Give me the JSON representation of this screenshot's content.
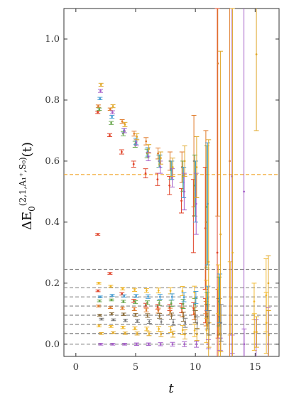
{
  "chart_data": {
    "type": "scatter",
    "title": "",
    "xlabel": "t",
    "ylabel": {
      "prefix": "ΔE",
      "subscript": "0",
      "superscript": "(2,1,A₁⁺,S₀)",
      "suffix": "(t)"
    },
    "xlim": [
      -1,
      17
    ],
    "ylim": [
      -0.04,
      1.1
    ],
    "xticks": [
      0,
      5,
      10,
      15
    ],
    "yticks": [
      0.0,
      0.2,
      0.4,
      0.6,
      0.8,
      1.0
    ],
    "ytick_labels": [
      "0.0",
      "0.2",
      "0.4",
      "0.6",
      "0.8",
      "1.0"
    ],
    "reference_lines": [
      {
        "y": 0.556,
        "color": "#f2a62b"
      },
      {
        "y": 0.245,
        "color": "#888888"
      },
      {
        "y": 0.185,
        "color": "#888888"
      },
      {
        "y": 0.155,
        "color": "#888888"
      },
      {
        "y": 0.125,
        "color": "#888888"
      },
      {
        "y": 0.095,
        "color": "#888888"
      },
      {
        "y": 0.065,
        "color": "#888888"
      },
      {
        "y": 0.035,
        "color": "#888888"
      },
      {
        "y": 0.0,
        "color": "#888888"
      }
    ],
    "series": [
      {
        "color": "#e0442a",
        "points": [
          [
            2,
            0.36,
            0.003
          ],
          [
            2,
            0.76,
            0.004
          ],
          [
            3,
            0.685,
            0.005
          ],
          [
            4,
            0.63,
            0.007
          ],
          [
            5,
            0.59,
            0.01
          ],
          [
            6,
            0.56,
            0.015
          ],
          [
            7,
            0.54,
            0.02
          ],
          [
            8,
            0.52,
            0.03
          ],
          [
            9,
            0.47,
            0.04
          ],
          [
            10,
            0.42,
            0.12
          ],
          [
            11,
            0.38,
            0.2
          ],
          [
            12,
            0.3,
            0.8
          ]
        ]
      },
      {
        "color": "#e0442a",
        "points": [
          [
            2,
            0.175,
            0.003
          ],
          [
            3,
            0.232,
            0.003
          ],
          [
            4,
            0.165,
            0.004
          ],
          [
            5,
            0.142,
            0.005
          ],
          [
            6,
            0.128,
            0.006
          ],
          [
            7,
            0.122,
            0.008
          ],
          [
            8,
            0.12,
            0.01
          ],
          [
            9,
            0.118,
            0.015
          ],
          [
            10,
            0.116,
            0.02
          ],
          [
            11,
            0.11,
            0.04
          ]
        ]
      },
      {
        "color": "#e07b2a",
        "points": [
          [
            2,
            0.78,
            0.004
          ],
          [
            3,
            0.77,
            0.004
          ],
          [
            4,
            0.73,
            0.006
          ],
          [
            5,
            0.69,
            0.008
          ],
          [
            6,
            0.665,
            0.012
          ],
          [
            7,
            0.625,
            0.018
          ],
          [
            8,
            0.6,
            0.03
          ],
          [
            9,
            0.58,
            0.05
          ],
          [
            10,
            0.6,
            0.15
          ],
          [
            11,
            0.4,
            0.3
          ],
          [
            12,
            0.92,
            0.5
          ],
          [
            13,
            0.6,
            0.8
          ]
        ]
      },
      {
        "color": "#e07b2a",
        "points": [
          [
            2,
            0.125,
            0.003
          ],
          [
            3,
            0.12,
            0.003
          ],
          [
            4,
            0.118,
            0.004
          ],
          [
            5,
            0.115,
            0.005
          ],
          [
            6,
            0.112,
            0.006
          ],
          [
            7,
            0.11,
            0.008
          ],
          [
            8,
            0.108,
            0.01
          ],
          [
            9,
            0.105,
            0.015
          ],
          [
            10,
            0.1,
            0.02
          ],
          [
            11,
            0.1,
            0.04
          ],
          [
            12,
            0.1,
            0.08
          ]
        ]
      },
      {
        "color": "#f2b82b",
        "points": [
          [
            2,
            0.2,
            0.003
          ],
          [
            3,
            0.19,
            0.003
          ],
          [
            4,
            0.182,
            0.004
          ],
          [
            5,
            0.178,
            0.005
          ],
          [
            6,
            0.176,
            0.006
          ],
          [
            7,
            0.176,
            0.008
          ],
          [
            8,
            0.175,
            0.01
          ],
          [
            9,
            0.174,
            0.015
          ],
          [
            10,
            0.17,
            0.02
          ],
          [
            11,
            0.17,
            0.04
          ],
          [
            12,
            0.18,
            0.08
          ],
          [
            13,
            0.15,
            0.12
          ],
          [
            15,
            0.14,
            0.06
          ],
          [
            16,
            0.16,
            0.12
          ]
        ]
      },
      {
        "color": "#f2b82b",
        "points": [
          [
            2,
            0.06,
            0.003
          ],
          [
            3,
            0.058,
            0.003
          ],
          [
            4,
            0.055,
            0.004
          ],
          [
            5,
            0.052,
            0.005
          ],
          [
            6,
            0.05,
            0.006
          ],
          [
            7,
            0.05,
            0.008
          ],
          [
            8,
            0.048,
            0.01
          ],
          [
            9,
            0.046,
            0.015
          ],
          [
            10,
            0.045,
            0.02
          ],
          [
            11,
            0.045,
            0.04
          ],
          [
            12,
            0.05,
            0.1
          ],
          [
            15,
            0.04,
            0.06
          ],
          [
            16,
            0.07,
            0.1
          ]
        ]
      },
      {
        "color": "#6aa84f",
        "points": [
          [
            2,
            0.77,
            0.004
          ],
          [
            3,
            0.725,
            0.005
          ],
          [
            4,
            0.69,
            0.007
          ],
          [
            5,
            0.655,
            0.01
          ],
          [
            6,
            0.625,
            0.014
          ],
          [
            7,
            0.6,
            0.02
          ],
          [
            8,
            0.57,
            0.03
          ],
          [
            9,
            0.55,
            0.05
          ],
          [
            10,
            0.52,
            0.1
          ],
          [
            11,
            0.45,
            0.2
          ]
        ]
      },
      {
        "color": "#6aa84f",
        "points": [
          [
            2,
            0.142,
            0.003
          ],
          [
            3,
            0.145,
            0.003
          ],
          [
            4,
            0.14,
            0.004
          ],
          [
            5,
            0.138,
            0.005
          ],
          [
            6,
            0.136,
            0.006
          ],
          [
            7,
            0.135,
            0.008
          ],
          [
            8,
            0.134,
            0.01
          ],
          [
            9,
            0.132,
            0.015
          ],
          [
            10,
            0.13,
            0.02
          ],
          [
            11,
            0.13,
            0.04
          ],
          [
            12,
            0.14,
            0.08
          ]
        ]
      },
      {
        "color": "#8b6d3a",
        "points": [
          [
            2,
            0.095,
            0.003
          ],
          [
            3,
            0.1,
            0.003
          ],
          [
            4,
            0.098,
            0.004
          ],
          [
            5,
            0.096,
            0.005
          ],
          [
            6,
            0.094,
            0.006
          ],
          [
            7,
            0.093,
            0.008
          ],
          [
            8,
            0.092,
            0.01
          ],
          [
            9,
            0.09,
            0.015
          ],
          [
            10,
            0.09,
            0.02
          ],
          [
            11,
            0.09,
            0.04
          ],
          [
            12,
            0.09,
            0.06
          ]
        ]
      },
      {
        "color": "#4a9fd4",
        "points": [
          [
            2,
            0.805,
            0.004
          ],
          [
            3,
            0.745,
            0.005
          ],
          [
            4,
            0.7,
            0.007
          ],
          [
            5,
            0.665,
            0.01
          ],
          [
            6,
            0.63,
            0.014
          ],
          [
            7,
            0.6,
            0.02
          ],
          [
            8,
            0.57,
            0.03
          ],
          [
            9,
            0.53,
            0.05
          ],
          [
            10,
            0.5,
            0.1
          ],
          [
            11,
            0.46,
            0.2
          ]
        ]
      },
      {
        "color": "#4a9fd4",
        "points": [
          [
            2,
            0.155,
            0.003
          ],
          [
            3,
            0.16,
            0.003
          ],
          [
            4,
            0.158,
            0.004
          ],
          [
            5,
            0.158,
            0.005
          ],
          [
            6,
            0.156,
            0.006
          ],
          [
            7,
            0.155,
            0.008
          ],
          [
            8,
            0.155,
            0.01
          ],
          [
            9,
            0.154,
            0.015
          ],
          [
            10,
            0.153,
            0.02
          ],
          [
            11,
            0.15,
            0.04
          ],
          [
            12,
            0.15,
            0.08
          ]
        ]
      },
      {
        "color": "#a55fc8",
        "points": [
          [
            2,
            0.83,
            0.005
          ],
          [
            3,
            0.76,
            0.005
          ],
          [
            4,
            0.7,
            0.007
          ],
          [
            5,
            0.66,
            0.01
          ],
          [
            6,
            0.615,
            0.014
          ],
          [
            7,
            0.58,
            0.02
          ],
          [
            8,
            0.545,
            0.03
          ],
          [
            9,
            0.5,
            0.06
          ],
          [
            10,
            0.46,
            0.1
          ],
          [
            13,
            0.55,
            0.9
          ],
          [
            14,
            0.5,
            0.9
          ]
        ]
      },
      {
        "color": "#a55fc8",
        "points": [
          [
            2,
            0.0,
            0.003
          ],
          [
            3,
            0.0,
            0.003
          ],
          [
            4,
            0.0,
            0.003
          ],
          [
            5,
            0.0,
            0.004
          ],
          [
            6,
            0.0,
            0.004
          ],
          [
            7,
            0.0,
            0.005
          ],
          [
            8,
            0.0,
            0.006
          ],
          [
            9,
            0.0,
            0.008
          ],
          [
            10,
            0.0,
            0.01
          ],
          [
            11,
            0.0,
            0.015
          ],
          [
            12,
            0.0,
            0.02
          ],
          [
            13,
            0.0,
            0.03
          ],
          [
            14,
            0.0,
            0.05
          ],
          [
            15,
            0.0,
            0.08
          ],
          [
            16,
            0.0,
            0.12
          ]
        ]
      },
      {
        "color": "#e0a82a",
        "points": [
          [
            2,
            0.85,
            0.005
          ],
          [
            3,
            0.78,
            0.005
          ],
          [
            4,
            0.72,
            0.007
          ],
          [
            5,
            0.68,
            0.01
          ],
          [
            6,
            0.64,
            0.014
          ],
          [
            7,
            0.61,
            0.02
          ],
          [
            8,
            0.58,
            0.03
          ],
          [
            9,
            0.6,
            0.05
          ],
          [
            10,
            0.58,
            0.1
          ],
          [
            11,
            0.27,
            0.4
          ],
          [
            12,
            0.36,
            0.6
          ],
          [
            13,
            0.3,
            0.8
          ],
          [
            15,
            0.95,
            0.25
          ],
          [
            16,
            0.2,
            0.09
          ]
        ]
      },
      {
        "color": "#e0a82a",
        "points": [
          [
            2,
            0.035,
            0.003
          ],
          [
            3,
            0.038,
            0.003
          ],
          [
            4,
            0.036,
            0.004
          ],
          [
            5,
            0.035,
            0.005
          ],
          [
            6,
            0.034,
            0.006
          ],
          [
            7,
            0.033,
            0.008
          ],
          [
            8,
            0.033,
            0.01
          ],
          [
            9,
            0.032,
            0.015
          ],
          [
            10,
            0.032,
            0.02
          ],
          [
            11,
            0.03,
            0.04
          ],
          [
            12,
            0.035,
            0.06
          ],
          [
            15,
            0.04,
            0.05
          ],
          [
            16,
            0.03,
            0.08
          ]
        ]
      },
      {
        "color": "#7a7a7a",
        "points": [
          [
            2,
            0.082,
            0.003
          ],
          [
            3,
            0.08,
            0.003
          ],
          [
            4,
            0.078,
            0.004
          ],
          [
            5,
            0.076,
            0.005
          ],
          [
            6,
            0.074,
            0.006
          ],
          [
            7,
            0.073,
            0.008
          ],
          [
            8,
            0.072,
            0.01
          ],
          [
            9,
            0.07,
            0.015
          ],
          [
            10,
            0.07,
            0.02
          ],
          [
            11,
            0.07,
            0.04
          ],
          [
            12,
            0.07,
            0.06
          ]
        ]
      }
    ]
  }
}
